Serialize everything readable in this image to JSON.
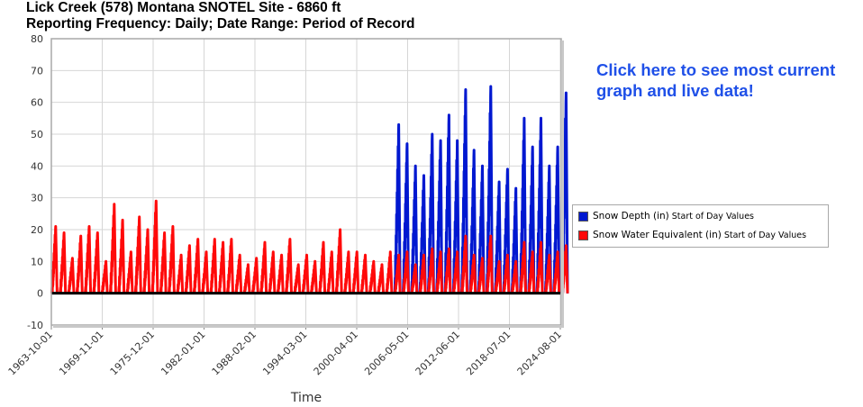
{
  "title_line1": "Lick Creek (578) Montana SNOTEL Site - 6860 ft",
  "title_line2": "Reporting Frequency: Daily; Date Range: Period of Record",
  "promo_text": "Click here to see most current graph and live data!",
  "legend": {
    "item1_name": "Snow Depth (in)",
    "item1_sub": "Start of Day Values",
    "item1_color": "#0018d0",
    "item2_name": "Snow Water Equivalent (in)",
    "item2_sub": "Start of Day Values",
    "item2_color": "#ff0a0a"
  },
  "chart_data": {
    "type": "line",
    "xlabel": "Time",
    "ylabel": "",
    "ylim": [
      -10,
      80
    ],
    "yticks": [
      -10,
      0,
      10,
      20,
      30,
      40,
      50,
      60,
      70,
      80
    ],
    "xlim": [
      "1963-10-01",
      "2024-08-01"
    ],
    "xticks": [
      "1963-10-01",
      "1969-11-01",
      "1975-12-01",
      "1982-01-01",
      "1988-02-01",
      "1994-03-01",
      "2000-04-01",
      "2006-05-01",
      "2012-06-01",
      "2018-07-01",
      "2024-08-01"
    ],
    "grid": true,
    "legend_position": "right",
    "series": [
      {
        "name": "Snow Depth (in) Start of Day Values",
        "color": "#0018d0",
        "annual_peaks": [
          {
            "year": 2005,
            "value": 53
          },
          {
            "year": 2006,
            "value": 47
          },
          {
            "year": 2007,
            "value": 40
          },
          {
            "year": 2008,
            "value": 37
          },
          {
            "year": 2009,
            "value": 50
          },
          {
            "year": 2010,
            "value": 48
          },
          {
            "year": 2011,
            "value": 56
          },
          {
            "year": 2012,
            "value": 48
          },
          {
            "year": 2013,
            "value": 64
          },
          {
            "year": 2014,
            "value": 45
          },
          {
            "year": 2015,
            "value": 40
          },
          {
            "year": 2016,
            "value": 65
          },
          {
            "year": 2017,
            "value": 35
          },
          {
            "year": 2018,
            "value": 39
          },
          {
            "year": 2019,
            "value": 33
          },
          {
            "year": 2020,
            "value": 55
          },
          {
            "year": 2021,
            "value": 46
          },
          {
            "year": 2022,
            "value": 55
          },
          {
            "year": 2023,
            "value": 40
          },
          {
            "year": 2024,
            "value": 46
          },
          {
            "year": 2025,
            "value": 63
          }
        ]
      },
      {
        "name": "Snow Water Equivalent (in) Start of Day Values",
        "color": "#ff0a0a",
        "annual_peaks": [
          {
            "year": 1964,
            "value": 21
          },
          {
            "year": 1965,
            "value": 19
          },
          {
            "year": 1966,
            "value": 11
          },
          {
            "year": 1967,
            "value": 18
          },
          {
            "year": 1968,
            "value": 21
          },
          {
            "year": 1969,
            "value": 19
          },
          {
            "year": 1970,
            "value": 10
          },
          {
            "year": 1971,
            "value": 28
          },
          {
            "year": 1972,
            "value": 23
          },
          {
            "year": 1973,
            "value": 13
          },
          {
            "year": 1974,
            "value": 24
          },
          {
            "year": 1975,
            "value": 20
          },
          {
            "year": 1976,
            "value": 29
          },
          {
            "year": 1977,
            "value": 19
          },
          {
            "year": 1978,
            "value": 21
          },
          {
            "year": 1979,
            "value": 12
          },
          {
            "year": 1980,
            "value": 15
          },
          {
            "year": 1981,
            "value": 17
          },
          {
            "year": 1982,
            "value": 13
          },
          {
            "year": 1983,
            "value": 17
          },
          {
            "year": 1984,
            "value": 16
          },
          {
            "year": 1985,
            "value": 17
          },
          {
            "year": 1986,
            "value": 12
          },
          {
            "year": 1987,
            "value": 9
          },
          {
            "year": 1988,
            "value": 11
          },
          {
            "year": 1989,
            "value": 16
          },
          {
            "year": 1990,
            "value": 13
          },
          {
            "year": 1991,
            "value": 12
          },
          {
            "year": 1992,
            "value": 17
          },
          {
            "year": 1993,
            "value": 9
          },
          {
            "year": 1994,
            "value": 12
          },
          {
            "year": 1995,
            "value": 10
          },
          {
            "year": 1996,
            "value": 16
          },
          {
            "year": 1997,
            "value": 13
          },
          {
            "year": 1998,
            "value": 20
          },
          {
            "year": 1999,
            "value": 13
          },
          {
            "year": 2000,
            "value": 13
          },
          {
            "year": 2001,
            "value": 12
          },
          {
            "year": 2002,
            "value": 10
          },
          {
            "year": 2003,
            "value": 9
          },
          {
            "year": 2004,
            "value": 13
          },
          {
            "year": 2005,
            "value": 12
          },
          {
            "year": 2006,
            "value": 13
          },
          {
            "year": 2007,
            "value": 9
          },
          {
            "year": 2008,
            "value": 12
          },
          {
            "year": 2009,
            "value": 14
          },
          {
            "year": 2010,
            "value": 13
          },
          {
            "year": 2011,
            "value": 14
          },
          {
            "year": 2012,
            "value": 13
          },
          {
            "year": 2013,
            "value": 18
          },
          {
            "year": 2014,
            "value": 12
          },
          {
            "year": 2015,
            "value": 11
          },
          {
            "year": 2016,
            "value": 18
          },
          {
            "year": 2017,
            "value": 10
          },
          {
            "year": 2018,
            "value": 12
          },
          {
            "year": 2019,
            "value": 10
          },
          {
            "year": 2020,
            "value": 16
          },
          {
            "year": 2021,
            "value": 13
          },
          {
            "year": 2022,
            "value": 16
          },
          {
            "year": 2023,
            "value": 12
          },
          {
            "year": 2024,
            "value": 13
          },
          {
            "year": 2025,
            "value": 15
          }
        ]
      }
    ]
  }
}
